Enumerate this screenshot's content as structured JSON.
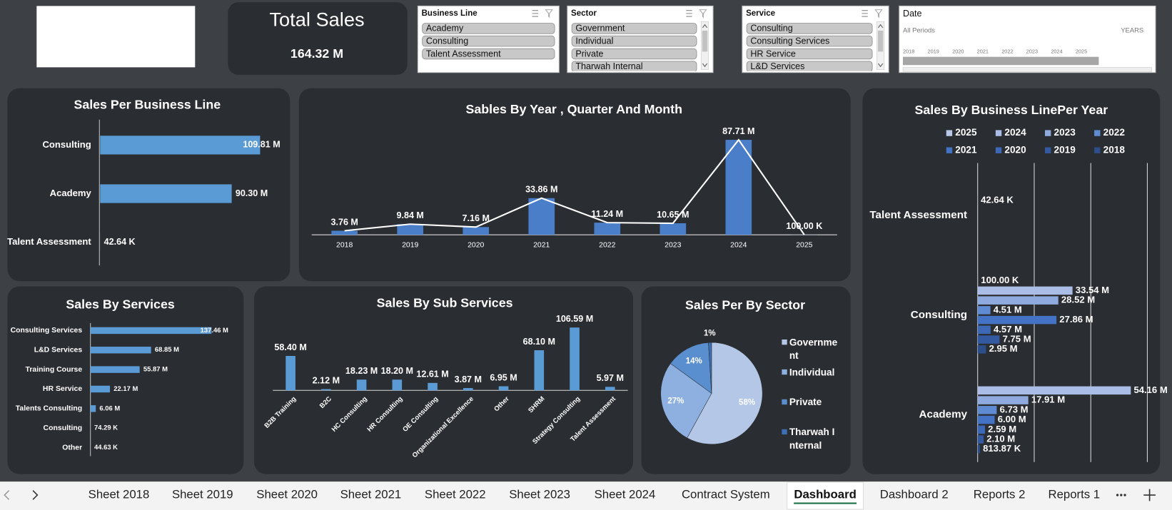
{
  "kpi": {
    "title": "Total Sales",
    "value": "164.32 M"
  },
  "slicers": [
    {
      "title": "Business Line",
      "items": [
        "Academy",
        "Consulting",
        "Talent Assessment"
      ]
    },
    {
      "title": "Sector",
      "items": [
        "Government",
        "Individual",
        "Private",
        "Tharwah Internal"
      ]
    },
    {
      "title": "Service",
      "items": [
        "Consulting",
        "Consulting Services",
        "HR Service",
        "L&D Services"
      ]
    }
  ],
  "date_slicer": {
    "title": "Date",
    "period": "All Periods",
    "level": "YEARS",
    "years": [
      "2018",
      "2019",
      "2020",
      "2021",
      "2022",
      "2023",
      "2024",
      "2025"
    ]
  },
  "chart_data": [
    {
      "type": "hbar",
      "title": "Sales Per Business Line",
      "categories": [
        "Consulting",
        "Academy",
        "Talent Assessment"
      ],
      "values": [
        109.81,
        90.3,
        0.04264
      ],
      "value_labels": [
        "109.81 M",
        "90.30 M",
        "42.64 K"
      ],
      "color": "#5b9bd5"
    },
    {
      "type": "combo",
      "title": "Sables By Year , Quarter And Month",
      "categories": [
        "2018",
        "2019",
        "2020",
        "2021",
        "2022",
        "2023",
        "2024",
        "2025"
      ],
      "values": [
        3.76,
        9.84,
        7.16,
        33.86,
        11.24,
        10.65,
        87.71,
        0.1
      ],
      "value_labels": [
        "3.76 M",
        "9.84 M",
        "7.16 M",
        "33.86 M",
        "11.24 M",
        "10.65 M",
        "87.71 M",
        "100.00 K"
      ],
      "color": "#4a7ec8",
      "line_color": "#ffffff"
    },
    {
      "type": "grouped_hbar",
      "title": "Sales By Business LinePer Year",
      "categories": [
        "Talent Assessment",
        "Consulting",
        "Academy"
      ],
      "series": [
        {
          "name": "2025",
          "color": "#b8c9e8",
          "values": [
            null,
            0.1,
            null
          ],
          "value_labels": [
            null,
            "100.00 K",
            null
          ]
        },
        {
          "name": "2024",
          "color": "#a9bde6",
          "values": [
            null,
            33.54,
            54.16
          ],
          "value_labels": [
            null,
            "33.54 M",
            "54.16 M"
          ]
        },
        {
          "name": "2023",
          "color": "#8eaadf",
          "values": [
            0.04264,
            28.52,
            17.91
          ],
          "value_labels": [
            "42.64 K",
            "28.52 M",
            "17.91 M"
          ]
        },
        {
          "name": "2022",
          "color": "#5f8bd3",
          "values": [
            null,
            4.51,
            6.73
          ],
          "value_labels": [
            null,
            "4.51 M",
            "6.73 M"
          ]
        },
        {
          "name": "2021",
          "color": "#4473c5",
          "values": [
            null,
            27.86,
            6.0
          ],
          "value_labels": [
            null,
            "27.86 M",
            "6.00 M"
          ]
        },
        {
          "name": "2020",
          "color": "#3c68b6",
          "values": [
            null,
            4.57,
            2.59
          ],
          "value_labels": [
            null,
            "4.57 M",
            "2.59 M"
          ]
        },
        {
          "name": "2019",
          "color": "#335aa0",
          "values": [
            null,
            7.75,
            2.1
          ],
          "value_labels": [
            null,
            "7.75 M",
            "2.10 M"
          ]
        },
        {
          "name": "2018",
          "color": "#2c4e8a",
          "values": [
            null,
            2.95,
            0.81387
          ],
          "value_labels": [
            null,
            "2.95 M",
            "813.87 K"
          ]
        }
      ],
      "xlim": [
        0,
        60
      ],
      "xticks": [
        0,
        20,
        40,
        60
      ],
      "grid": true
    },
    {
      "type": "hbar",
      "title": "Sales By Services",
      "categories": [
        "Consulting Services",
        "L&D Services",
        "Training Course",
        "HR Service",
        "Talents Consulting",
        "Consulting",
        "Other"
      ],
      "values": [
        137.46,
        68.85,
        55.87,
        22.17,
        6.06,
        0.07429,
        0.04463
      ],
      "value_labels": [
        "137.46 M",
        "68.85 M",
        "55.87 M",
        "22.17 M",
        "6.06 M",
        "74.29 K",
        "44.63 K"
      ],
      "color": "#5b9bd5"
    },
    {
      "type": "bar",
      "title": "Sales By Sub Services",
      "categories": [
        "B2B Training",
        "B2C",
        "HC Consulting",
        "HR Consulting",
        "OE Consulting",
        "Organizational Excellence",
        "Other",
        "SHRM",
        "Strategy Consulting",
        "Talent Assessment"
      ],
      "values": [
        58.4,
        2.12,
        18.23,
        18.2,
        12.61,
        3.87,
        6.95,
        68.1,
        106.59,
        5.97
      ],
      "value_labels": [
        "58.40 M",
        "2.12 M",
        "18.23 M",
        "18.20 M",
        "12.61 M",
        "3.87 M",
        "6.95 M",
        "68.10 M",
        "106.59 M",
        "5.97 M"
      ],
      "color": "#5b9bd5"
    },
    {
      "type": "pie",
      "title": "Sales Per By Sector",
      "categories": [
        "Government",
        "Individual",
        "Private",
        "Tharwah Internal"
      ],
      "values": [
        58,
        27,
        14,
        1
      ],
      "value_labels": [
        "58%",
        "27%",
        "14%",
        "1%"
      ],
      "colors": [
        "#b4c7e7",
        "#8db0e0",
        "#5a8fcf",
        "#3d6fb5"
      ]
    }
  ],
  "tabs": {
    "items": [
      "Sheet 2018",
      "Sheet 2019",
      "Sheet 2020",
      "Sheet 2021",
      "Sheet 2022",
      "Sheet 2023",
      "Sheet 2024",
      "Contract System",
      "Dashboard",
      "Dashboard 2",
      "Reports 2",
      "Reports 1"
    ],
    "active": 8
  }
}
